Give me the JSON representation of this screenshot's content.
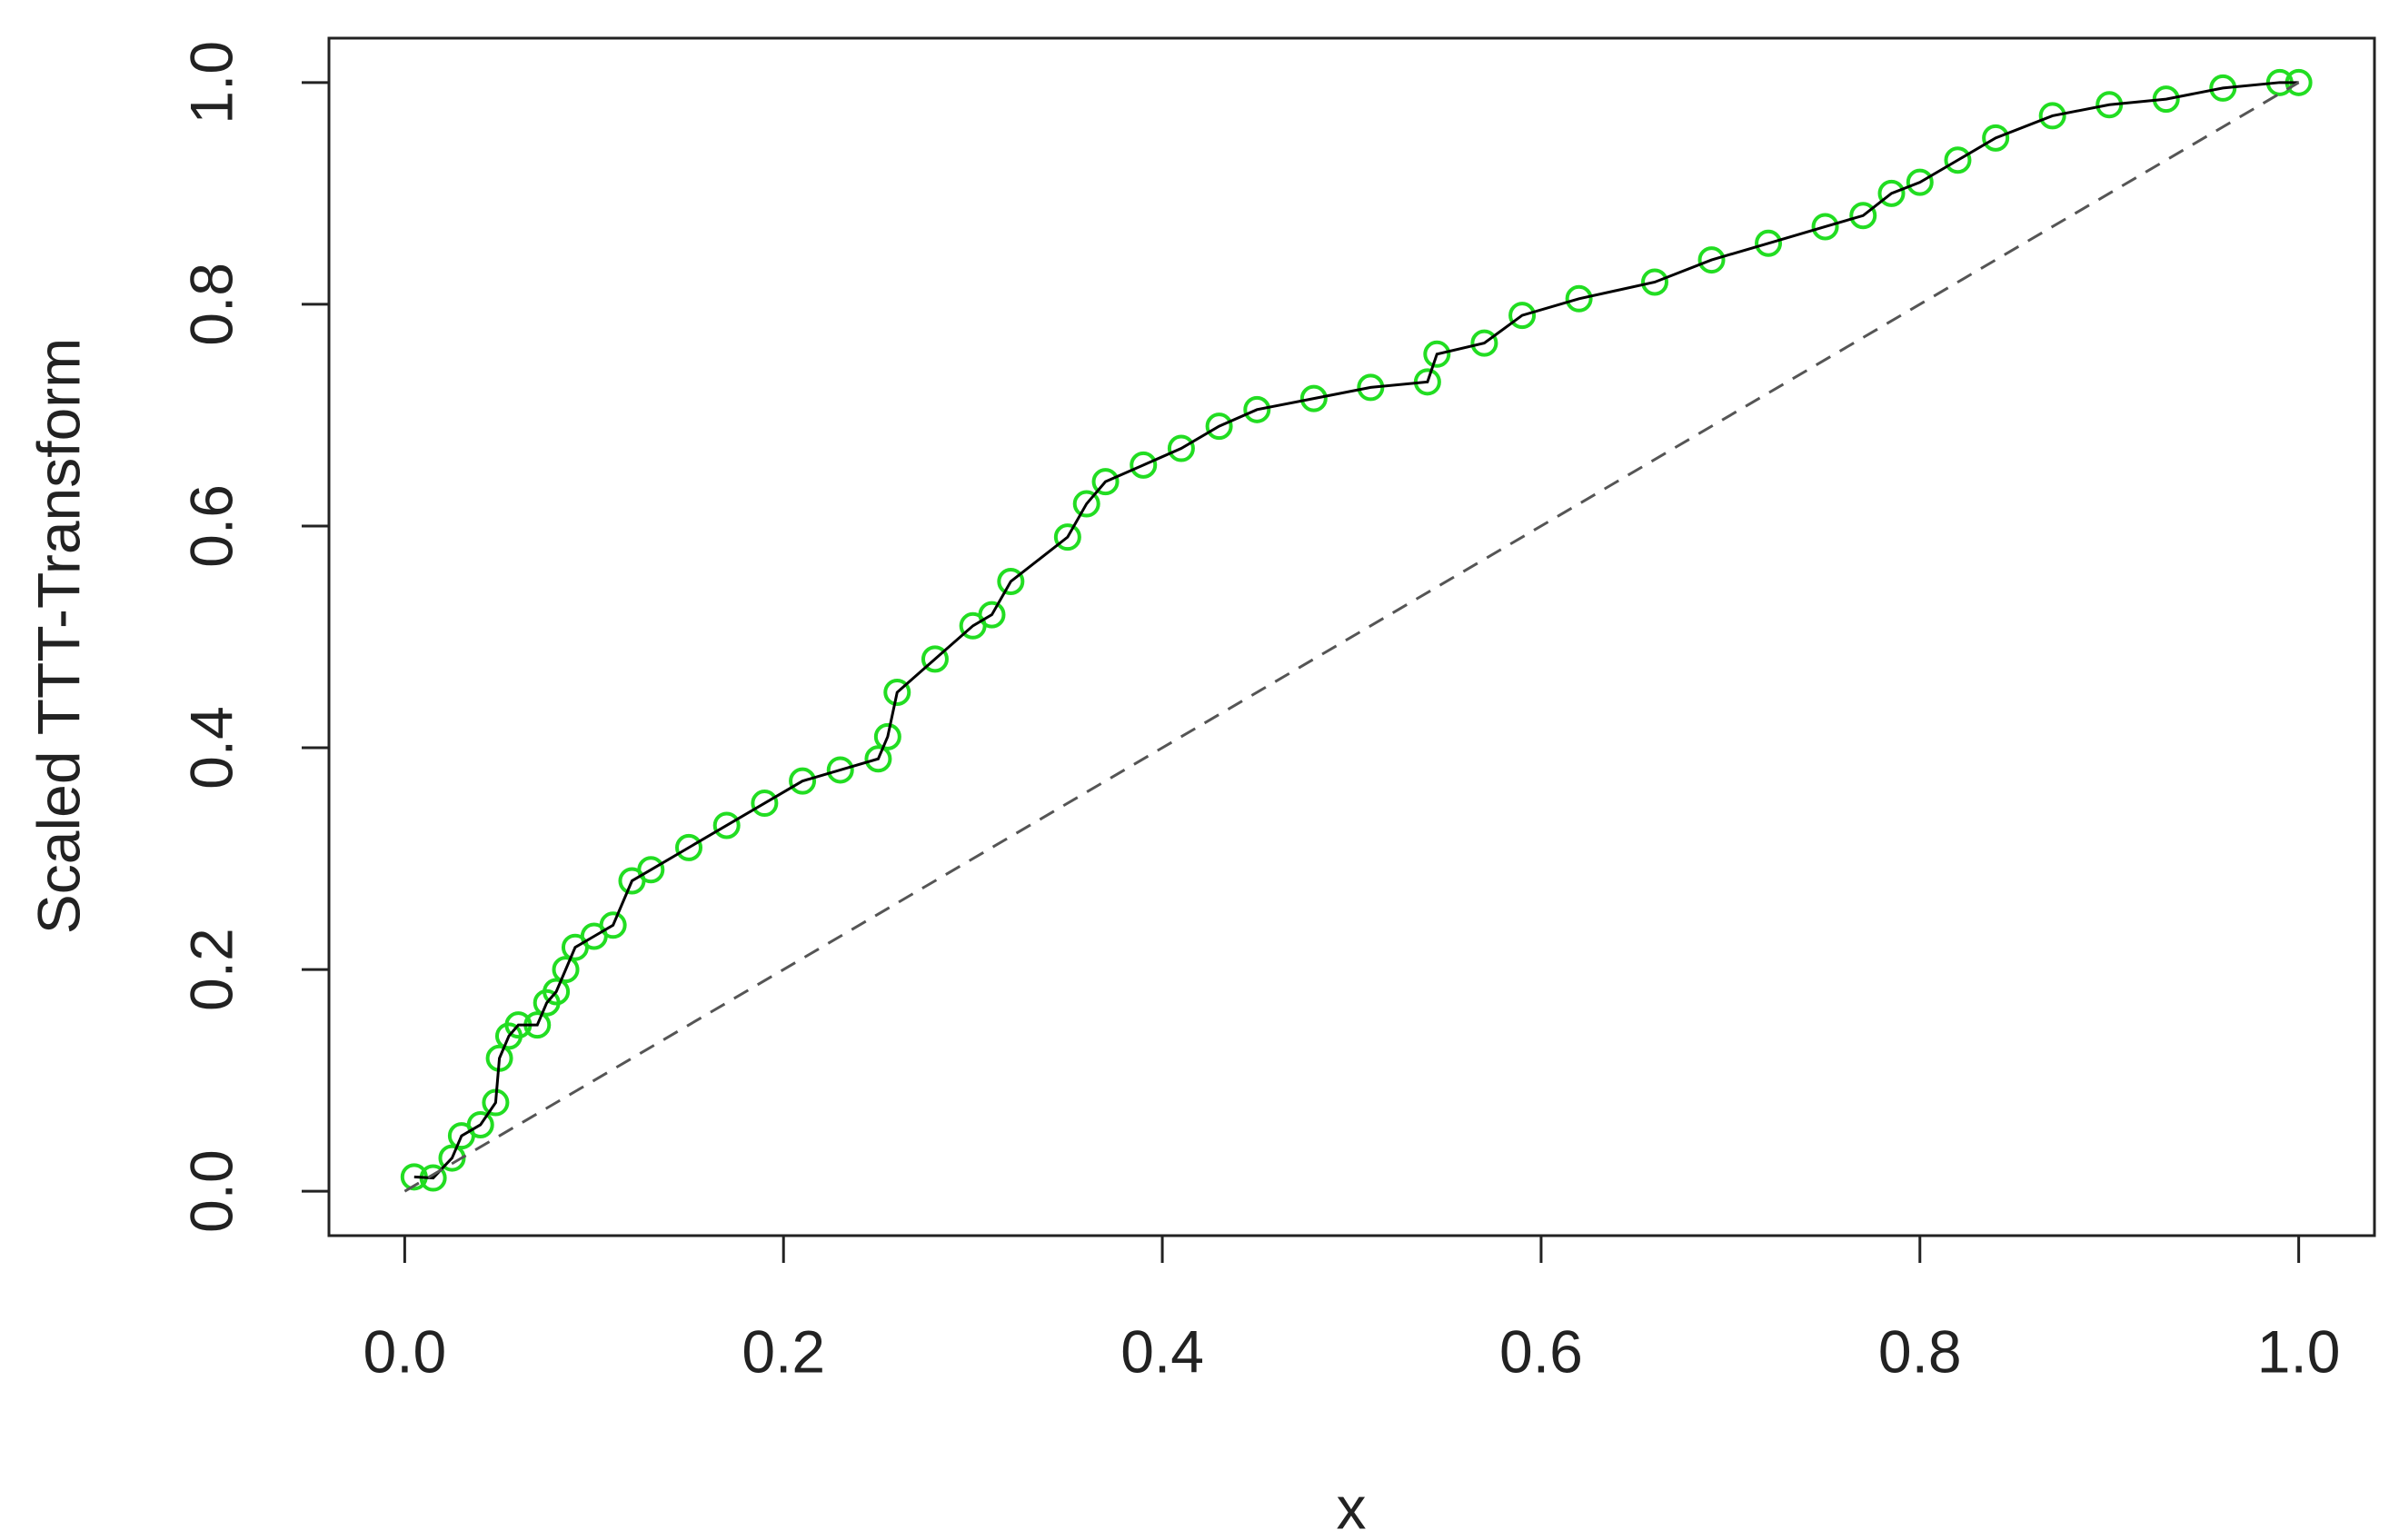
{
  "chart_data": {
    "type": "scatter",
    "xlabel": "x",
    "ylabel": "Scaled TTT-Transform",
    "xlim": [
      -0.04,
      1.04
    ],
    "ylim": [
      -0.04,
      1.04
    ],
    "xticks": [
      {
        "value": 0,
        "label": "0.0"
      },
      0.2,
      0.4,
      0.6,
      0.8,
      {
        "value": 1,
        "label": "1.0"
      }
    ],
    "yticks": [
      {
        "value": 0,
        "label": "0.0"
      },
      0.2,
      0.4,
      0.6,
      0.8,
      {
        "value": 1,
        "label": "1.0"
      }
    ],
    "series": [
      {
        "color": "#22dd22",
        "line_color": "#000000",
        "x": [
          0.005,
          0.015,
          0.025,
          0.03,
          0.04,
          0.048,
          0.05,
          0.055,
          0.06,
          0.07,
          0.075,
          0.08,
          0.085,
          0.09,
          0.1,
          0.11,
          0.12,
          0.13,
          0.15,
          0.17,
          0.19,
          0.21,
          0.23,
          0.25,
          0.255,
          0.26,
          0.28,
          0.3,
          0.31,
          0.32,
          0.35,
          0.36,
          0.37,
          0.39,
          0.41,
          0.43,
          0.45,
          0.48,
          0.51,
          0.54,
          0.545,
          0.57,
          0.59,
          0.62,
          0.66,
          0.69,
          0.72,
          0.75,
          0.77,
          0.785,
          0.8,
          0.82,
          0.84,
          0.87,
          0.9,
          0.93,
          0.96,
          0.99,
          1.0
        ],
        "values": [
          0.013,
          0.012,
          0.03,
          0.05,
          0.06,
          0.08,
          0.12,
          0.14,
          0.15,
          0.15,
          0.17,
          0.18,
          0.2,
          0.22,
          0.23,
          0.24,
          0.28,
          0.29,
          0.31,
          0.33,
          0.35,
          0.37,
          0.38,
          0.39,
          0.41,
          0.45,
          0.48,
          0.51,
          0.52,
          0.55,
          0.59,
          0.62,
          0.64,
          0.655,
          0.67,
          0.69,
          0.705,
          0.715,
          0.725,
          0.73,
          0.755,
          0.765,
          0.79,
          0.805,
          0.82,
          0.84,
          0.855,
          0.87,
          0.88,
          0.9,
          0.91,
          0.93,
          0.95,
          0.97,
          0.98,
          0.985,
          0.995,
          1.0,
          1.0
        ]
      },
      {
        "color": "#555555",
        "dashed": true,
        "x": [
          0,
          1
        ],
        "values": [
          0,
          1
        ]
      }
    ]
  }
}
